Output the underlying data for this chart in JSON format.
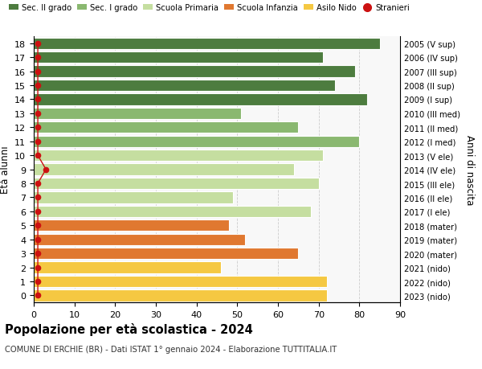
{
  "ages": [
    0,
    1,
    2,
    3,
    4,
    5,
    6,
    7,
    8,
    9,
    10,
    11,
    12,
    13,
    14,
    15,
    16,
    17,
    18
  ],
  "bar_values": [
    72,
    72,
    46,
    65,
    52,
    48,
    68,
    49,
    70,
    64,
    71,
    80,
    65,
    51,
    82,
    74,
    79,
    71,
    85
  ],
  "stranieri_values": [
    1,
    1,
    1,
    1,
    1,
    1,
    1,
    1,
    1,
    3,
    1,
    1,
    1,
    1,
    1,
    1,
    1,
    1,
    1
  ],
  "right_labels": [
    "2023 (nido)",
    "2022 (nido)",
    "2021 (nido)",
    "2020 (mater)",
    "2019 (mater)",
    "2018 (mater)",
    "2017 (I ele)",
    "2016 (II ele)",
    "2015 (III ele)",
    "2014 (IV ele)",
    "2013 (V ele)",
    "2012 (I med)",
    "2011 (II med)",
    "2010 (III med)",
    "2009 (I sup)",
    "2008 (II sup)",
    "2007 (III sup)",
    "2006 (IV sup)",
    "2005 (V sup)"
  ],
  "title": "Popolazione per età scolastica - 2024",
  "subtitle": "COMUNE DI ERCHIE (BR) - Dati ISTAT 1° gennaio 2024 - Elaborazione TUTTITALIA.IT",
  "ylabel_label": "Età alunni",
  "right_ylabel": "Anni di nascita",
  "xlim": [
    0,
    90
  ],
  "xticks": [
    0,
    10,
    20,
    30,
    40,
    50,
    60,
    70,
    80,
    90
  ],
  "legend_labels": [
    "Sec. II grado",
    "Sec. I grado",
    "Scuola Primaria",
    "Scuola Infanzia",
    "Asilo Nido",
    "Stranieri"
  ],
  "legend_colors": [
    "#4d7c3f",
    "#8ab870",
    "#c5dea0",
    "#e07830",
    "#f5c842",
    "#cc1111"
  ],
  "bar_color_by_age": {
    "0": "#f5c842",
    "1": "#f5c842",
    "2": "#f5c842",
    "3": "#e07830",
    "4": "#e07830",
    "5": "#e07830",
    "6": "#c5dea0",
    "7": "#c5dea0",
    "8": "#c5dea0",
    "9": "#c5dea0",
    "10": "#c5dea0",
    "11": "#8ab870",
    "12": "#8ab870",
    "13": "#8ab870",
    "14": "#4d7c3f",
    "15": "#4d7c3f",
    "16": "#4d7c3f",
    "17": "#4d7c3f",
    "18": "#4d7c3f"
  },
  "stranieri_color": "#cc1111",
  "bg_color": "#ffffff",
  "plot_bg": "#f8f8f8",
  "grid_color": "#cccccc"
}
